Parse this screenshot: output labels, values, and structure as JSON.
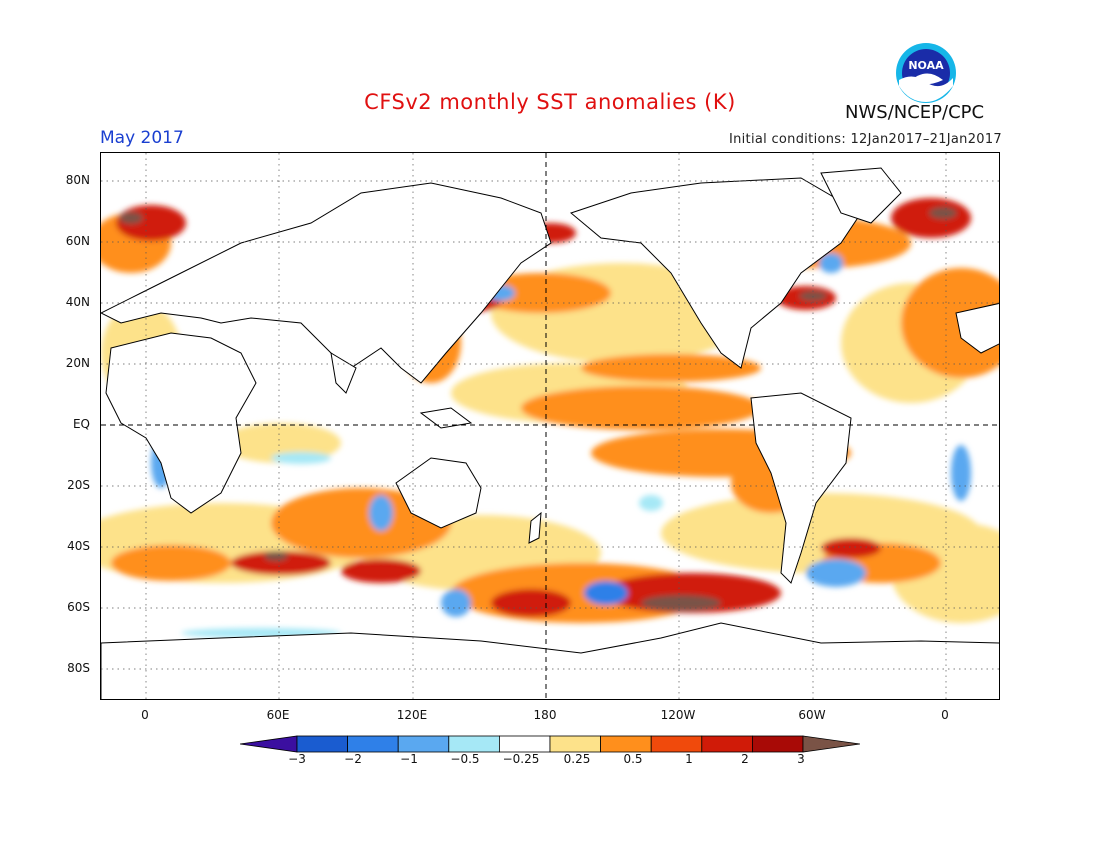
{
  "title": "CFSv2 monthly SST anomalies (K)",
  "month": "May 2017",
  "initial_conditions": "Initial conditions: 12Jan2017–21Jan2017",
  "agency": "NWS/NCEP/CPC",
  "logo_text": "NOAA",
  "lat_labels": [
    "80N",
    "60N",
    "40N",
    "20N",
    "EQ",
    "20S",
    "40S",
    "60S",
    "80S"
  ],
  "lon_labels": [
    "0",
    "60E",
    "120E",
    "180",
    "120W",
    "60W",
    "0"
  ],
  "colorbar": {
    "ticks": [
      "−3",
      "−2",
      "−1",
      "−0.5",
      "−0.25",
      "0.25",
      "0.5",
      "1",
      "2",
      "3"
    ],
    "colors": [
      "#3b0fa0",
      "#1a5cd0",
      "#2f80e8",
      "#5aa8f0",
      "#a6e8f6",
      "#ffffff",
      "#fde28a",
      "#ff8f1c",
      "#f04a0c",
      "#d01b08",
      "#a80a06",
      "#7a5346"
    ]
  },
  "icons": {
    "logo": "noaa-logo-icon"
  }
}
